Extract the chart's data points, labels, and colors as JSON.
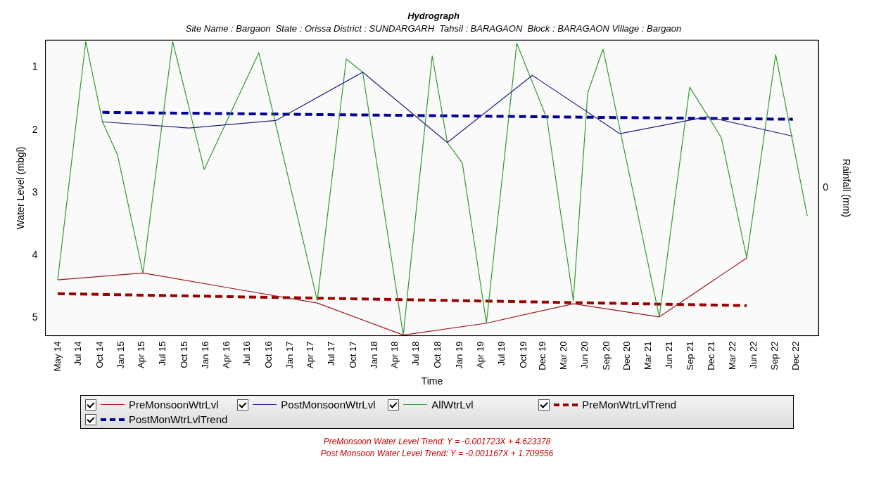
{
  "chart_data": {
    "type": "line",
    "title": "Hydrograph",
    "subtitle": "Site Name : Bargaon  State : Orissa District : SUNDARGARH  Tahsil : BARAGAON  Block : BARAGAON Village : Bargaon",
    "xlabel": "Time",
    "ylabel": "Water Level (mbgl)",
    "y2label": "Rainfall (mm)",
    "xlim": [
      "2014-03-10",
      "2023-03-05"
    ],
    "xticks": [
      {
        "value": "2014-05-01",
        "label": "May 14"
      },
      {
        "value": "2014-07-29",
        "label": "Jul 14"
      },
      {
        "value": "2014-10-28",
        "label": "Oct 14"
      },
      {
        "value": "2015-01-26",
        "label": "Jan 15"
      },
      {
        "value": "2015-04-24",
        "label": "Apr 15"
      },
      {
        "value": "2015-07-22",
        "label": "Jul 15"
      },
      {
        "value": "2015-10-21",
        "label": "Oct 15"
      },
      {
        "value": "2016-01-19",
        "label": "Jan 16"
      },
      {
        "value": "2016-04-17",
        "label": "Apr 16"
      },
      {
        "value": "2016-07-15",
        "label": "Jul 16"
      },
      {
        "value": "2016-10-14",
        "label": "Oct 16"
      },
      {
        "value": "2017-01-12",
        "label": "Jan 17"
      },
      {
        "value": "2017-04-10",
        "label": "Apr 17"
      },
      {
        "value": "2017-07-08",
        "label": "Jul 17"
      },
      {
        "value": "2017-10-07",
        "label": "Oct 17"
      },
      {
        "value": "2018-01-05",
        "label": "Jan 18"
      },
      {
        "value": "2018-04-03",
        "label": "Apr 18"
      },
      {
        "value": "2018-07-02",
        "label": "Jul 18"
      },
      {
        "value": "2018-10-01",
        "label": "Oct 18"
      },
      {
        "value": "2019-01-01",
        "label": "Jan 19"
      },
      {
        "value": "2019-04-01",
        "label": "Apr 19"
      },
      {
        "value": "2019-07-01",
        "label": "Jul 19"
      },
      {
        "value": "2019-10-01",
        "label": "Oct 19"
      },
      {
        "value": "2019-12-21",
        "label": "Dec 19"
      },
      {
        "value": "2020-03-19",
        "label": "Mar 20"
      },
      {
        "value": "2020-06-18",
        "label": "Jun 20"
      },
      {
        "value": "2020-09-16",
        "label": "Sep 20"
      },
      {
        "value": "2020-12-14",
        "label": "Dec 20"
      },
      {
        "value": "2021-03-12",
        "label": "Mar 21"
      },
      {
        "value": "2021-06-11",
        "label": "Jun 21"
      },
      {
        "value": "2021-09-09",
        "label": "Sep 21"
      },
      {
        "value": "2021-12-07",
        "label": "Dec 21"
      },
      {
        "value": "2022-03-06",
        "label": "Mar 22"
      },
      {
        "value": "2022-06-04",
        "label": "Jun 22"
      },
      {
        "value": "2022-09-02",
        "label": "Sep 22"
      },
      {
        "value": "2022-12-01",
        "label": "Dec 22"
      }
    ],
    "ylim": [
      5.28,
      0.57
    ],
    "yticks": [
      1,
      2,
      3,
      4,
      5
    ],
    "grid": false,
    "marker": "none",
    "legend": "bottom",
    "series": [
      {
        "name": "PreMonsoonWtrLvl",
        "color": "#a01818",
        "line_style": "solid",
        "x": [
          "2014-05-01",
          "2015-04-28",
          "2016-05-01",
          "2017-05-07",
          "2018-05-07",
          "2019-04-25",
          "2020-04-28",
          "2021-04-28",
          "2022-05-04"
        ],
        "values": [
          4.39,
          4.28,
          4.52,
          4.76,
          5.27,
          5.08,
          4.77,
          4.98,
          4.04
        ]
      },
      {
        "name": "PostMonsoonWtrLvl",
        "color": "#202080",
        "line_style": "solid",
        "x": [
          "2014-11-07",
          "2015-11-10",
          "2016-11-12",
          "2017-11-16",
          "2018-11-10",
          "2019-11-06",
          "2020-11-12",
          "2021-11-18",
          "2022-11-16"
        ],
        "values": [
          1.87,
          1.97,
          1.85,
          1.08,
          2.2,
          1.13,
          2.06,
          1.79,
          2.1
        ]
      },
      {
        "name": "AllWtrLvl",
        "color": "#2e9b2e",
        "line_style": "solid",
        "x": [
          "2014-05-01",
          "2014-08-28",
          "2014-11-07",
          "2015-01-10",
          "2015-04-28",
          "2015-09-01",
          "2016-01-13",
          "2016-09-01",
          "2017-05-07",
          "2017-09-07",
          "2017-11-16",
          "2018-05-07",
          "2018-09-07",
          "2018-11-10",
          "2019-01-13",
          "2019-04-25",
          "2019-09-01",
          "2020-01-07",
          "2020-04-28",
          "2020-06-28",
          "2020-09-01",
          "2021-04-28",
          "2021-09-04",
          "2022-01-16",
          "2022-05-04",
          "2022-09-04",
          "2023-01-16"
        ],
        "values": [
          4.39,
          0.59,
          1.87,
          2.4,
          4.28,
          0.59,
          2.63,
          0.77,
          4.72,
          0.87,
          1.08,
          5.27,
          0.82,
          2.2,
          2.53,
          5.08,
          0.62,
          1.82,
          4.72,
          1.41,
          0.71,
          4.98,
          1.32,
          2.12,
          4.04,
          0.8,
          3.37
        ]
      },
      {
        "name": "PreMonWtrLvlTrend",
        "color": "#990000",
        "line_style": "dashed",
        "x": [
          "2014-05-01",
          "2022-05-04"
        ],
        "values": [
          4.61,
          4.8
        ]
      },
      {
        "name": "PostMonWtrLvlTrend",
        "color": "#000099",
        "line_style": "dashed",
        "x": [
          "2014-11-07",
          "2022-11-16"
        ],
        "values": [
          1.72,
          1.83
        ]
      }
    ],
    "annotations": [
      "0",
      "PreMonsoon Water Level Trend: Y = -0.001723X + 4.623378",
      "Post Monsoon Water Level Trend: Y = -0.001167X + 1.709556"
    ]
  }
}
